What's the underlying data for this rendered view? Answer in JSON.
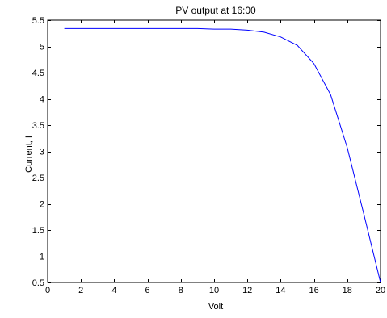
{
  "chart_data": {
    "type": "line",
    "title": "PV output at 16:00",
    "xlabel": "Volt",
    "ylabel": "Current, I",
    "xlim": [
      0,
      20
    ],
    "ylim": [
      0.5,
      5.5
    ],
    "xticks": [
      0,
      2,
      4,
      6,
      8,
      10,
      12,
      14,
      16,
      18,
      20
    ],
    "yticks": [
      0.5,
      1,
      1.5,
      2,
      2.5,
      3,
      3.5,
      4,
      4.5,
      5,
      5.5
    ],
    "xtick_labels": [
      "0",
      "2",
      "4",
      "6",
      "8",
      "10",
      "12",
      "14",
      "16",
      "18",
      "20"
    ],
    "ytick_labels": [
      "0.5",
      "1",
      "1.5",
      "2",
      "2.5",
      "3",
      "3.5",
      "4",
      "4.5",
      "5",
      "5.5"
    ],
    "grid": false,
    "series": [
      {
        "color": "#0000ff",
        "x": [
          1,
          2,
          3,
          4,
          5,
          6,
          7,
          8,
          9,
          10,
          11,
          12,
          13,
          14,
          15,
          16,
          17,
          18,
          19,
          20
        ],
        "y": [
          5.34,
          5.34,
          5.34,
          5.34,
          5.34,
          5.34,
          5.34,
          5.34,
          5.34,
          5.33,
          5.33,
          5.31,
          5.27,
          5.18,
          5.02,
          4.67,
          4.08,
          3.07,
          1.8,
          0.5
        ]
      }
    ]
  }
}
